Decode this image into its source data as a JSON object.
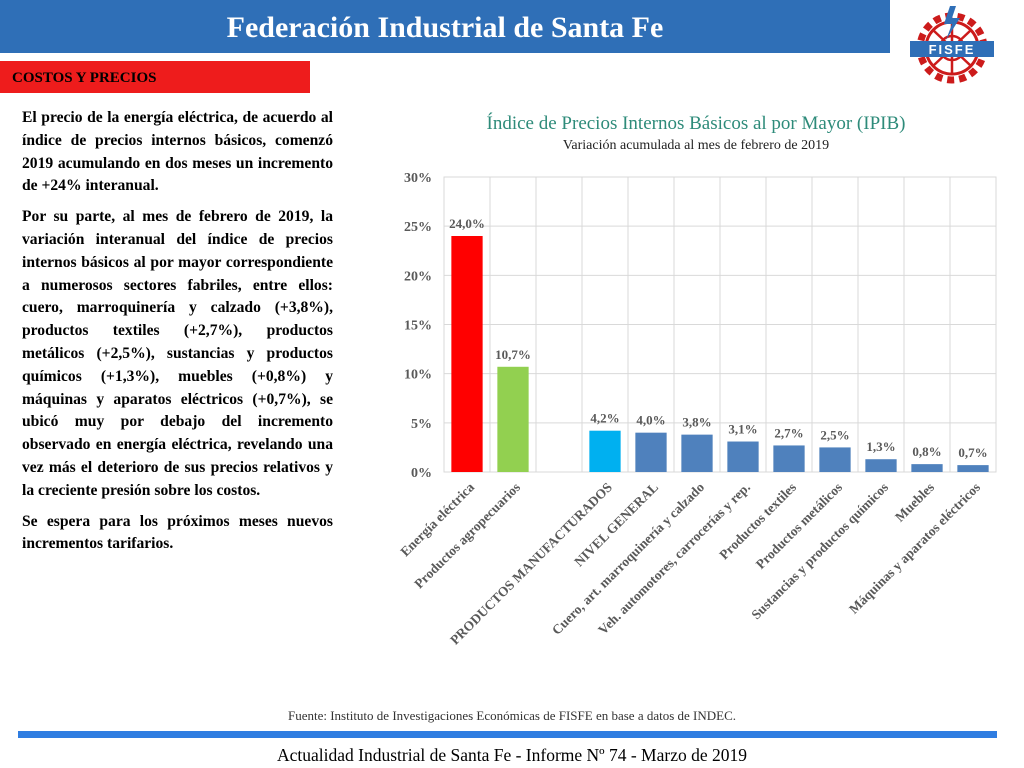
{
  "header": {
    "title": "Federación Industrial de Santa Fe"
  },
  "logo": {
    "text": "FISFE"
  },
  "section": {
    "label": "COSTOS Y PRECIOS"
  },
  "body": {
    "p1": "El precio de la energía eléctrica, de acuerdo al índice de precios internos básicos, comenzó 2019 acumulando en dos meses un incremento de +24% interanual.",
    "p2": "Por su parte, al mes de febrero de 2019, la variación interanual del índice de precios internos básicos al por mayor correspondiente a numerosos sectores fabriles, entre ellos: cuero, marroquinería y calzado (+3,8%), productos textiles (+2,7%), productos metálicos (+2,5%), sustancias y productos químicos (+1,3%), muebles (+0,8%) y máquinas y aparatos eléctricos (+0,7%), se ubicó muy por debajo del incremento observado en energía eléctrica, revelando una vez más el deterioro de sus precios relativos y la creciente presión sobre los costos.",
    "p3": "Se espera para los próximos meses nuevos incrementos tarifarios."
  },
  "chart_data": {
    "type": "bar",
    "title": "Índice de Precios Internos Básicos al por Mayor (IPIB)",
    "subtitle": "Variación acumulada al mes de febrero de 2019",
    "categories": [
      "Energía eléctrica",
      "Productos agropecuarios",
      "",
      "PRODUCTOS MANUFACTURADOS",
      "NIVEL GENERAL",
      "Cuero, art. marroquinería y calzado",
      "Veh. automotores, carrocerías y rep.",
      "Productos textiles",
      "Productos metálicos",
      "Sustancias y productos químicos",
      "Muebles",
      "Máquinas y aparatos eléctricos"
    ],
    "values": [
      24.0,
      10.7,
      null,
      4.2,
      4.0,
      3.8,
      3.1,
      2.7,
      2.5,
      1.3,
      0.8,
      0.7
    ],
    "value_labels": [
      "24,0%",
      "10,7%",
      "",
      "4,2%",
      "4,0%",
      "3,8%",
      "3,1%",
      "2,7%",
      "2,5%",
      "1,3%",
      "0,8%",
      "0,7%"
    ],
    "colors": [
      "#ff0000",
      "#92d050",
      "#ffffff",
      "#00b0f0",
      "#4f81bd",
      "#4f81bd",
      "#4f81bd",
      "#4f81bd",
      "#4f81bd",
      "#4f81bd",
      "#4f81bd",
      "#4f81bd"
    ],
    "ylim": [
      0,
      30
    ],
    "yticks": [
      "0%",
      "5%",
      "10%",
      "15%",
      "20%",
      "25%",
      "30%"
    ],
    "grid": true,
    "legend": "none",
    "title_color": "#2e8b7a"
  },
  "source": "Fuente: Instituto de Investigaciones Económicas de FISFE en base a datos de INDEC.",
  "footer": "Actualidad Industrial de Santa Fe - Informe Nº 74 - Marzo de 2019"
}
